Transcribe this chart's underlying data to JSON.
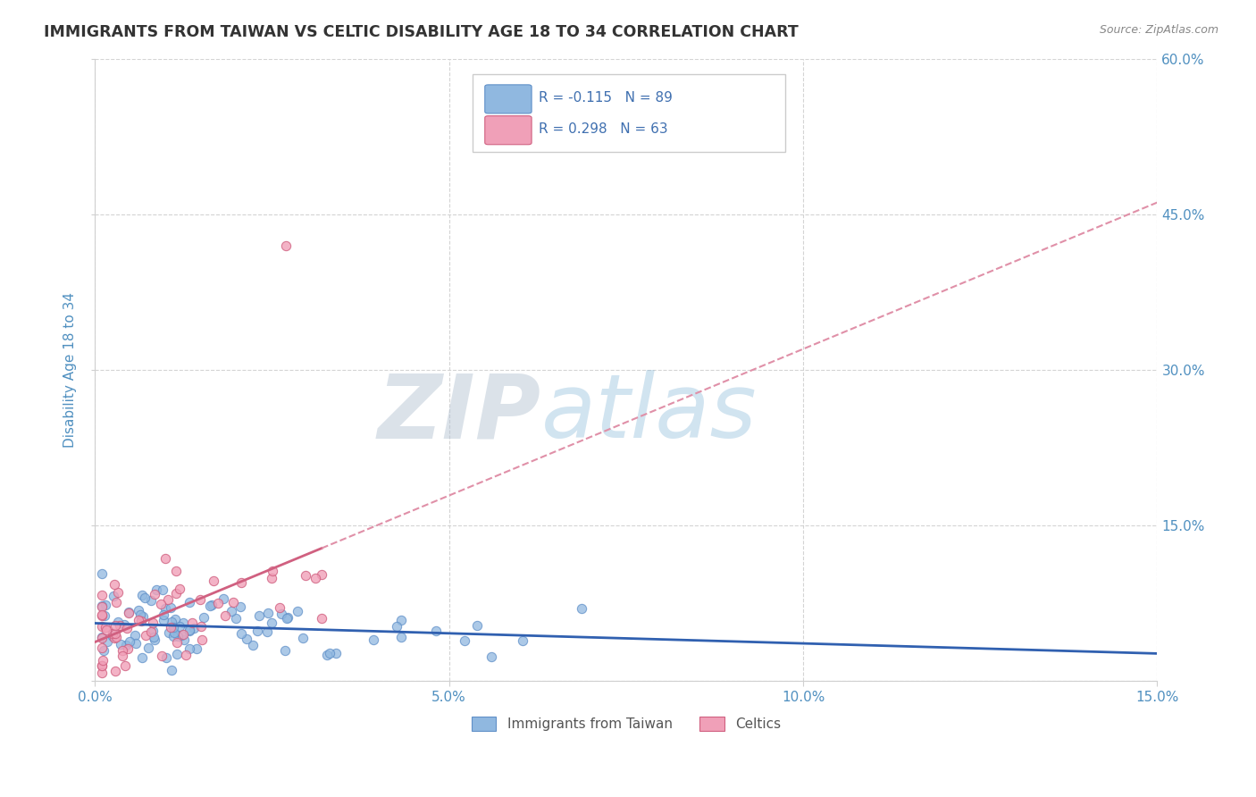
{
  "title": "IMMIGRANTS FROM TAIWAN VS CELTIC DISABILITY AGE 18 TO 34 CORRELATION CHART",
  "source_text": "Source: ZipAtlas.com",
  "ylabel": "Disability Age 18 to 34",
  "xlim": [
    0.0,
    0.15
  ],
  "ylim": [
    0.0,
    0.6
  ],
  "xticks": [
    0.0,
    0.05,
    0.1,
    0.15
  ],
  "xtick_labels": [
    "0.0%",
    "5.0%",
    "10.0%",
    "15.0%"
  ],
  "yticks": [
    0.0,
    0.15,
    0.3,
    0.45,
    0.6
  ],
  "ytick_labels_right": [
    "",
    "15.0%",
    "30.0%",
    "45.0%",
    "60.0%"
  ],
  "taiwan_color": "#90b8e0",
  "taiwan_edge": "#6090c8",
  "celtics_color": "#f0a0b8",
  "celtics_edge": "#d06080",
  "taiwan_trend_color": "#3060b0",
  "celtics_trend_solid_color": "#d06080",
  "celtics_trend_dashed_color": "#e090a8",
  "taiwan_R": -0.115,
  "taiwan_N": 89,
  "celtics_R": 0.298,
  "celtics_N": 63,
  "watermark_zip": "ZIP",
  "watermark_atlas": "atlas",
  "background_color": "#ffffff",
  "grid_color": "#d0d0d0",
  "title_color": "#333333",
  "tick_label_color": "#5090c0",
  "source_color": "#888888",
  "legend_text_color": "#4070b0"
}
